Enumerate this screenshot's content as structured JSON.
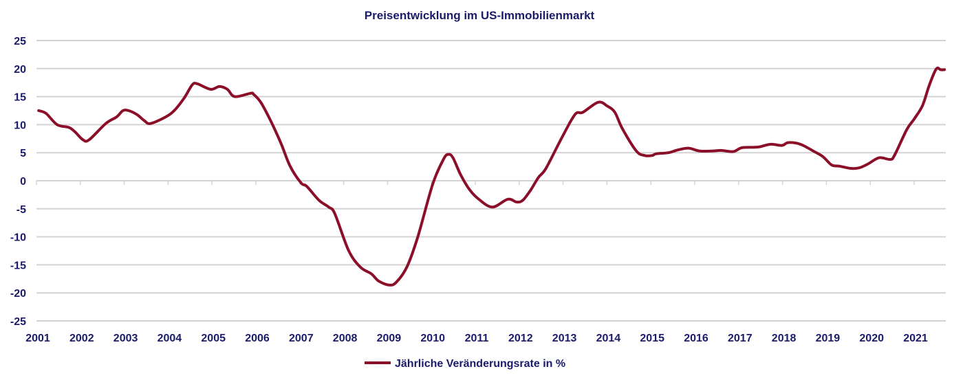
{
  "chart_data": {
    "type": "line",
    "title": "Preisentwicklung im US-Immobilienmarkt",
    "xlabel": "",
    "ylabel": "",
    "xlim": [
      2001,
      2021.75
    ],
    "ylim": [
      -25,
      25
    ],
    "grid": true,
    "legend_position": "bottom-center",
    "x_ticks": [
      "2001",
      "2002",
      "2003",
      "2004",
      "2005",
      "2006",
      "2007",
      "2008",
      "2009",
      "2010",
      "2011",
      "2012",
      "2013",
      "2014",
      "2015",
      "2016",
      "2017",
      "2018",
      "2019",
      "2020",
      "2021"
    ],
    "y_ticks": [
      25,
      20,
      15,
      10,
      5,
      0,
      -5,
      -10,
      -15,
      -20,
      -25
    ],
    "series": [
      {
        "name": "Jährliche Veränderungsrate in %",
        "color": "#8b0f28",
        "x": [
          2001.05,
          2001.22,
          2001.47,
          2001.74,
          2001.88,
          2002.06,
          2002.2,
          2002.58,
          2002.83,
          2002.97,
          2003.1,
          2003.29,
          2003.46,
          2003.6,
          2003.95,
          2004.15,
          2004.37,
          2004.55,
          2004.66,
          2004.97,
          2005.17,
          2005.35,
          2005.52,
          2005.88,
          2005.95,
          2006.11,
          2006.33,
          2006.57,
          2006.78,
          2007.03,
          2007.16,
          2007.44,
          2007.66,
          2007.8,
          2008.11,
          2008.38,
          2008.63,
          2008.8,
          2009.04,
          2009.2,
          2009.44,
          2009.69,
          2010.03,
          2010.28,
          2010.39,
          2010.49,
          2010.67,
          2010.87,
          2011.08,
          2011.39,
          2011.74,
          2011.94,
          2012.08,
          2012.25,
          2012.44,
          2012.61,
          2012.96,
          2013.27,
          2013.45,
          2013.8,
          2014.01,
          2014.18,
          2014.35,
          2014.67,
          2014.86,
          2015.03,
          2015.12,
          2015.4,
          2015.62,
          2015.86,
          2016.11,
          2016.39,
          2016.6,
          2016.88,
          2017.08,
          2017.44,
          2017.72,
          2017.99,
          2018.13,
          2018.41,
          2018.7,
          2018.92,
          2019.12,
          2019.3,
          2019.55,
          2019.75,
          2019.95,
          2020.2,
          2020.45,
          2020.55,
          2020.83,
          2021.0,
          2021.19,
          2021.33,
          2021.46,
          2021.53,
          2021.6,
          2021.69
        ],
        "values": [
          12.5,
          12.0,
          10.0,
          9.5,
          8.7,
          7.3,
          7.3,
          10.2,
          11.4,
          12.5,
          12.5,
          11.8,
          10.7,
          10.2,
          11.4,
          12.6,
          14.8,
          17.1,
          17.3,
          16.3,
          16.8,
          16.3,
          15.0,
          15.6,
          15.4,
          14.0,
          10.8,
          6.7,
          2.6,
          -0.4,
          -1.0,
          -3.5,
          -4.7,
          -5.9,
          -12.4,
          -15.4,
          -16.6,
          -17.9,
          -18.6,
          -18.1,
          -15.4,
          -10.0,
          -0.6,
          3.9,
          4.7,
          4.1,
          1.0,
          -1.6,
          -3.3,
          -4.7,
          -3.3,
          -3.8,
          -3.5,
          -1.8,
          0.6,
          2.2,
          7.5,
          11.8,
          12.2,
          14.0,
          13.3,
          12.2,
          9.3,
          5.3,
          4.5,
          4.5,
          4.8,
          5.0,
          5.5,
          5.8,
          5.3,
          5.3,
          5.4,
          5.2,
          5.9,
          6.0,
          6.5,
          6.3,
          6.8,
          6.5,
          5.3,
          4.3,
          2.8,
          2.6,
          2.2,
          2.3,
          3.0,
          4.1,
          3.8,
          4.5,
          9.1,
          11.0,
          13.4,
          16.7,
          19.3,
          20.1,
          19.8,
          19.8
        ]
      }
    ]
  }
}
